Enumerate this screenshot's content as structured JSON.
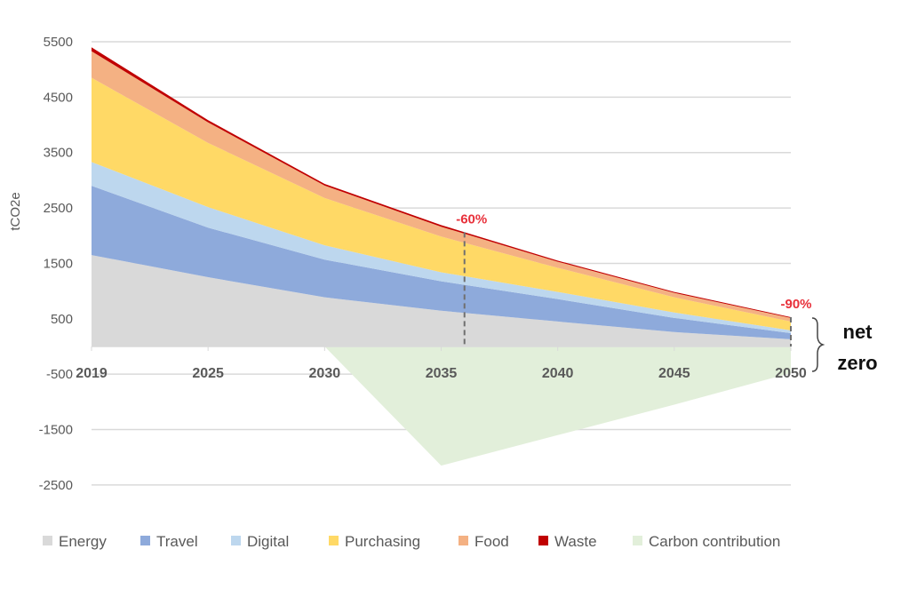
{
  "chart_data": {
    "type": "area",
    "stacked": true,
    "title": "",
    "xlabel": "",
    "ylabel": "tCO2e",
    "categories": [
      "2019",
      "2025",
      "2030",
      "2035",
      "2040",
      "2045",
      "2050"
    ],
    "ylim": [
      -2500,
      5500
    ],
    "yticks": [
      5500,
      4500,
      3500,
      2500,
      1500,
      500,
      -500,
      -1500,
      -2500
    ],
    "grid": true,
    "legend_position": "bottom",
    "series": [
      {
        "name": "Energy",
        "color": "#d9d9d9",
        "values": [
          1650,
          1250,
          887,
          645,
          450,
          260,
          130
        ]
      },
      {
        "name": "Travel",
        "color": "#8eaadb",
        "values": [
          1250,
          895,
          680,
          532,
          405,
          256,
          110
        ]
      },
      {
        "name": "Digital",
        "color": "#bdd7ee",
        "values": [
          430,
          370,
          258,
          162,
          130,
          97,
          50
        ]
      },
      {
        "name": "Purchasing",
        "color": "#ffd966",
        "values": [
          1520,
          1160,
          854,
          645,
          435,
          274,
          160
        ]
      },
      {
        "name": "Food",
        "color": "#f4b183",
        "values": [
          480,
          370,
          226,
          177,
          110,
          81,
          65
        ]
      },
      {
        "name": "Waste",
        "color": "#c00000",
        "values": [
          70,
          40,
          30,
          30,
          20,
          17,
          15
        ]
      },
      {
        "name": "Carbon contribution",
        "color": "#e2efda",
        "values": [
          0,
          0,
          0,
          -2150,
          -1600,
          -1050,
          -480
        ]
      }
    ],
    "annotations": [
      {
        "label": "-60%",
        "x": "2036",
        "color": "#e8303a"
      },
      {
        "label": "-90%",
        "x": "2050",
        "color": "#e8303a"
      },
      {
        "label_line1": "net",
        "label_line2": "zero",
        "x": "2050"
      }
    ]
  }
}
